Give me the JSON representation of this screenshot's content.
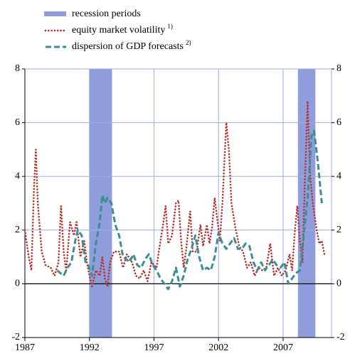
{
  "chart_data": {
    "type": "line",
    "xlim": [
      1987,
      2010.75
    ],
    "xticks": [
      1987,
      1992,
      1997,
      2002,
      2007
    ],
    "ylim": [
      -2,
      8
    ],
    "yticks": [
      -2,
      0,
      2,
      4,
      6,
      8
    ],
    "y2lim": [
      -2,
      8
    ],
    "y2ticks": [
      -2,
      0,
      2,
      4,
      6,
      8
    ],
    "grid": true,
    "recessions": {
      "name": "recession periods",
      "color": "#8f9ddd",
      "periods": [
        [
          1992,
          1993.75
        ],
        [
          2008.15,
          2009.5
        ]
      ]
    },
    "series": [
      {
        "name": "equity market volatility",
        "footnote": "1)",
        "color": "#b5312b",
        "style": "dotted",
        "x": [
          1987.0,
          1987.3,
          1987.5,
          1987.7,
          1987.85,
          1988.0,
          1988.3,
          1988.6,
          1989.0,
          1989.3,
          1989.6,
          1989.8,
          1990.0,
          1990.2,
          1990.5,
          1990.8,
          1991.0,
          1991.3,
          1991.6,
          1991.8,
          1992.0,
          1992.2,
          1992.5,
          1992.8,
          1993.0,
          1993.2,
          1993.4,
          1993.6,
          1993.9,
          1994.3,
          1994.6,
          1994.9,
          1995.3,
          1995.6,
          1995.9,
          1996.2,
          1996.5,
          1996.8,
          1997.2,
          1997.4,
          1997.7,
          1997.9,
          1998.1,
          1998.4,
          1998.7,
          1998.9,
          1999.1,
          1999.3,
          1999.5,
          1999.8,
          2000.0,
          2000.3,
          2000.6,
          2000.8,
          2001.1,
          2001.3,
          2001.5,
          2001.7,
          2001.9,
          2002.1,
          2002.3,
          2002.5,
          2002.6,
          2002.8,
          2003.0,
          2003.3,
          2003.6,
          2003.9,
          2004.2,
          2004.5,
          2004.8,
          2005.1,
          2005.4,
          2005.7,
          2006.0,
          2006.3,
          2006.6,
          2006.9,
          2007.2,
          2007.5,
          2007.7,
          2007.9,
          2008.1,
          2008.3,
          2008.5,
          2008.7,
          2008.9,
          2009.1,
          2009.3,
          2009.6,
          2009.8,
          2010.0,
          2010.2
        ],
        "values": [
          2.0,
          1.0,
          0.5,
          3.5,
          5.0,
          3.0,
          1.2,
          0.7,
          0.6,
          0.3,
          0.8,
          2.9,
          1.2,
          0.5,
          2.3,
          1.8,
          2.3,
          1.0,
          1.6,
          0.8,
          0.3,
          -0.1,
          0.5,
          0.3,
          1.0,
          0.2,
          -0.1,
          0.8,
          1.2,
          1.2,
          0.6,
          1.1,
          0.8,
          0.3,
          0.2,
          0.5,
          0.1,
          0.8,
          0.6,
          1.3,
          2.2,
          2.9,
          1.5,
          1.8,
          3.0,
          3.1,
          1.6,
          0.6,
          1.3,
          2.7,
          1.2,
          1.2,
          2.2,
          1.4,
          2.2,
          1.5,
          2.1,
          3.2,
          2.4,
          1.6,
          3.0,
          5.0,
          6.0,
          5.0,
          3.0,
          2.1,
          1.4,
          1.2,
          0.6,
          0.8,
          0.3,
          0.6,
          0.5,
          0.6,
          1.5,
          0.3,
          0.6,
          0.3,
          0.5,
          1.1,
          0.5,
          1.9,
          2.9,
          1.6,
          0.8,
          4.0,
          6.8,
          4.0,
          3.0,
          2.0,
          1.5,
          1.6,
          1.1
        ]
      },
      {
        "name": "dispersion of GDP forecasts",
        "footnote": "2)",
        "color": "#3d8e94",
        "style": "dashed",
        "x": [
          1989.5,
          1990.0,
          1990.3,
          1990.6,
          1990.9,
          1991.1,
          1991.4,
          1991.7,
          1991.9,
          1992.2,
          1992.5,
          1992.8,
          1993.0,
          1993.2,
          1993.4,
          1993.7,
          1994.0,
          1994.3,
          1994.6,
          1994.9,
          1995.1,
          1995.4,
          1995.7,
          1996.0,
          1996.3,
          1996.6,
          1996.9,
          1997.2,
          1997.5,
          1997.8,
          1998.1,
          1998.4,
          1998.7,
          1999.0,
          1999.3,
          1999.6,
          1999.9,
          2000.2,
          2000.5,
          2000.8,
          2001.1,
          2001.4,
          2001.7,
          2002.0,
          2002.3,
          2002.6,
          2002.9,
          2003.2,
          2003.5,
          2003.8,
          2004.1,
          2004.4,
          2004.7,
          2005.0,
          2005.3,
          2005.6,
          2005.9,
          2006.2,
          2006.5,
          2006.8,
          2007.1,
          2007.4,
          2007.7,
          2008.0,
          2008.3,
          2008.6,
          2008.9,
          2009.2,
          2009.4,
          2009.7,
          2010.0
        ],
        "values": [
          0.5,
          0.3,
          0.6,
          0.8,
          1.6,
          2.0,
          1.8,
          0.8,
          0.7,
          0.3,
          1.5,
          2.3,
          3.3,
          3.0,
          3.2,
          3.0,
          2.2,
          1.8,
          1.0,
          0.9,
          0.8,
          1.1,
          0.7,
          0.6,
          0.9,
          1.1,
          0.7,
          0.5,
          0.2,
          0.0,
          -0.2,
          0.1,
          0.6,
          -0.1,
          0.3,
          0.9,
          1.3,
          1.8,
          1.0,
          0.5,
          0.6,
          0.5,
          1.0,
          1.9,
          1.5,
          1.3,
          1.5,
          1.7,
          1.3,
          1.3,
          1.5,
          1.4,
          0.8,
          0.5,
          0.8,
          0.5,
          0.7,
          0.9,
          0.7,
          0.6,
          0.8,
          0.0,
          0.2,
          0.4,
          0.5,
          1.8,
          3.2,
          5.5,
          5.7,
          4.5,
          3.0
        ]
      }
    ]
  }
}
